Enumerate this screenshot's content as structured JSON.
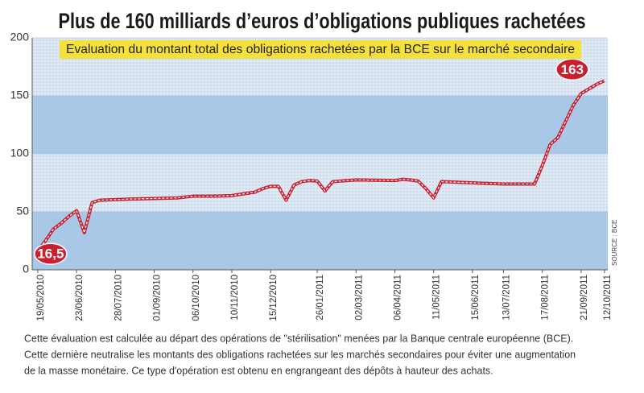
{
  "chart_data": {
    "type": "line",
    "title": "Plus de 160 milliards d’euros d’obligations publiques rachetées",
    "subtitle": "Evaluation du montant total des obligations rachetées par la BCE sur le marché secondaire",
    "source": "SOURCE : BCE",
    "footnote": [
      "Cette évaluation est calculée au départ des opérations de \"stérilisation\" menées par la Banque centrale européenne (BCE).",
      "Cette dernière neutralise les montants des obligations rachetées sur les marchés secondaires pour éviter une augmentation",
      "de la masse monétaire. Ce type d'opération est obtenu en engrangeant des dépôts à hauteur des achats."
    ],
    "xlim": [
      "14/05/2010",
      "15/10/2011"
    ],
    "xticks": [
      "19/05/2010",
      "23/06/2010",
      "28/07/2010",
      "01/09/2010",
      "06/10/2010",
      "10/11/2010",
      "15/12/2010",
      "26/01/2011",
      "02/03/2011",
      "06/04/2011",
      "11/05/2011",
      "15/06/2011",
      "13/07/2011",
      "17/08/2011",
      "21/09/2011",
      "12/10/2011"
    ],
    "ylim": [
      0,
      200
    ],
    "yticks": [
      0,
      50,
      100,
      150,
      200
    ],
    "grid": true,
    "color": "#c8202f",
    "x": [
      "19/05/2010",
      "26/05/2010",
      "02/06/2010",
      "09/06/2010",
      "16/06/2010",
      "23/06/2010",
      "30/06/2010",
      "07/07/2010",
      "14/07/2010",
      "28/07/2010",
      "11/08/2010",
      "01/09/2010",
      "22/09/2010",
      "06/10/2010",
      "27/10/2010",
      "10/11/2010",
      "24/11/2010",
      "01/12/2010",
      "08/12/2010",
      "15/12/2010",
      "22/12/2010",
      "29/12/2010",
      "05/01/2011",
      "12/01/2011",
      "19/01/2011",
      "26/01/2011",
      "02/02/2011",
      "09/02/2011",
      "02/03/2011",
      "06/04/2011",
      "13/04/2011",
      "20/04/2011",
      "27/04/2011",
      "04/05/2011",
      "11/05/2011",
      "18/05/2011",
      "15/06/2011",
      "13/07/2011",
      "10/08/2011",
      "17/08/2011",
      "24/08/2011",
      "31/08/2011",
      "07/09/2011",
      "14/09/2011",
      "21/09/2011",
      "28/09/2011",
      "05/10/2011",
      "12/10/2011"
    ],
    "values": [
      16.5,
      25,
      35,
      40,
      46,
      51,
      32,
      58,
      60,
      60.5,
      61,
      61.5,
      62,
      63.5,
      63.5,
      64,
      66,
      67,
      70,
      72,
      72,
      60,
      73,
      76,
      77,
      76.5,
      68,
      76,
      77.5,
      77,
      78,
      77.5,
      76.5,
      70,
      62,
      76,
      75,
      74,
      74,
      90,
      108,
      114,
      128,
      142,
      152,
      156,
      160,
      163
    ],
    "value_labels": [
      "16,5",
      null,
      null,
      null,
      null,
      null,
      null,
      null,
      null,
      null,
      null,
      null,
      null,
      null,
      null,
      null,
      null,
      null,
      null,
      null,
      null,
      null,
      null,
      null,
      null,
      null,
      null,
      null,
      null,
      null,
      null,
      null,
      null,
      null,
      null,
      null,
      null,
      null,
      null,
      null,
      null,
      null,
      null,
      null,
      null,
      null,
      null,
      "163"
    ]
  }
}
